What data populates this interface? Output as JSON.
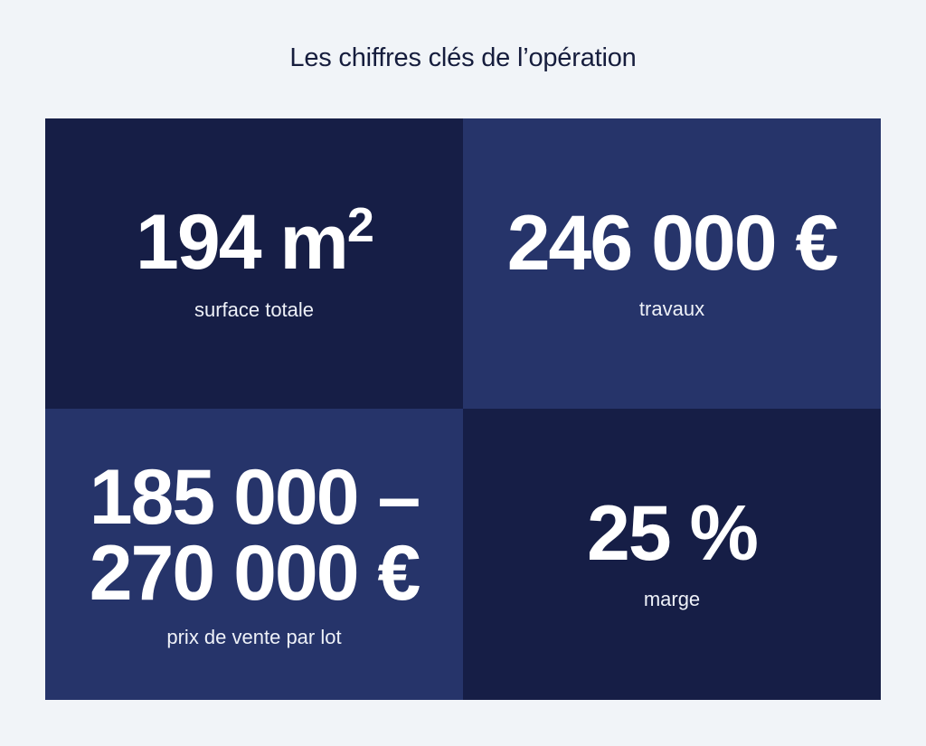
{
  "title": "Les chiffres clés de l’opération",
  "colors": {
    "background": "#f1f4f8",
    "title_text": "#161d3d",
    "tile_dark": "#161e46",
    "tile_light": "#26346a",
    "tile_text": "#ffffff"
  },
  "tiles": [
    {
      "value": "194 m",
      "superscript": "2",
      "label": "surface totale"
    },
    {
      "value": "246 000 €",
      "label": "travaux"
    },
    {
      "value_line1": "185 000 –",
      "value_line2": "270 000 €",
      "label": "prix de vente par lot"
    },
    {
      "value": "25 %",
      "label": "marge"
    }
  ]
}
